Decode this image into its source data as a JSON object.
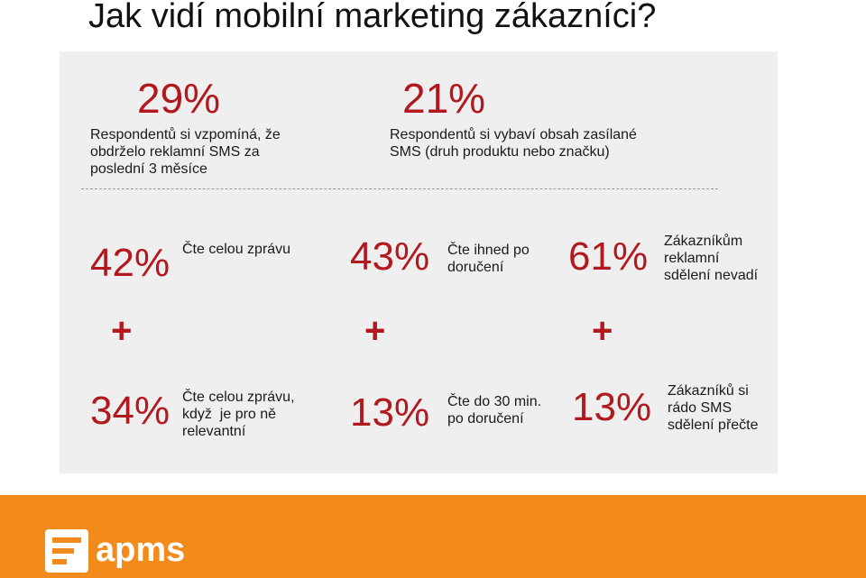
{
  "title": "Jak vidí mobilní marketing zákazníci?",
  "top_stats": [
    {
      "value": "29%",
      "lines": [
        "Respondentů si vzpomíná, že",
        "obdrželo reklamní SMS za",
        "poslední 3 měsíce"
      ]
    },
    {
      "value": "21%",
      "lines": [
        "Respondentů si vybaví obsah zasílané",
        "SMS (druh produktu nebo značku)"
      ]
    }
  ],
  "row1": [
    {
      "value": "42%",
      "lines": [
        "Čte celou zprávu"
      ]
    },
    {
      "value": "43%",
      "lines": [
        "Čte ihned po",
        "doručení"
      ]
    },
    {
      "value": "61%",
      "lines": [
        "Zákazníkům",
        "reklamní",
        "sdělení nevadí"
      ]
    }
  ],
  "plus_sign": "+",
  "row2": [
    {
      "value": "34%",
      "lines": [
        "Čte celou zprávu,",
        "když  je pro ně",
        "relevantní"
      ]
    },
    {
      "value": "13%",
      "lines": [
        "Čte do 30 min.",
        "po doručení"
      ]
    },
    {
      "value": "13%",
      "lines": [
        "Zákazníků si",
        "rádo SMS",
        "sdělení přečte"
      ]
    }
  ],
  "footer": {
    "logo_text": "apms",
    "logo_icon": "apms-logo-icon",
    "background_color": "#f28a1c"
  },
  "colors": {
    "accent_red": "#b2191e",
    "panel": "#efefef"
  }
}
